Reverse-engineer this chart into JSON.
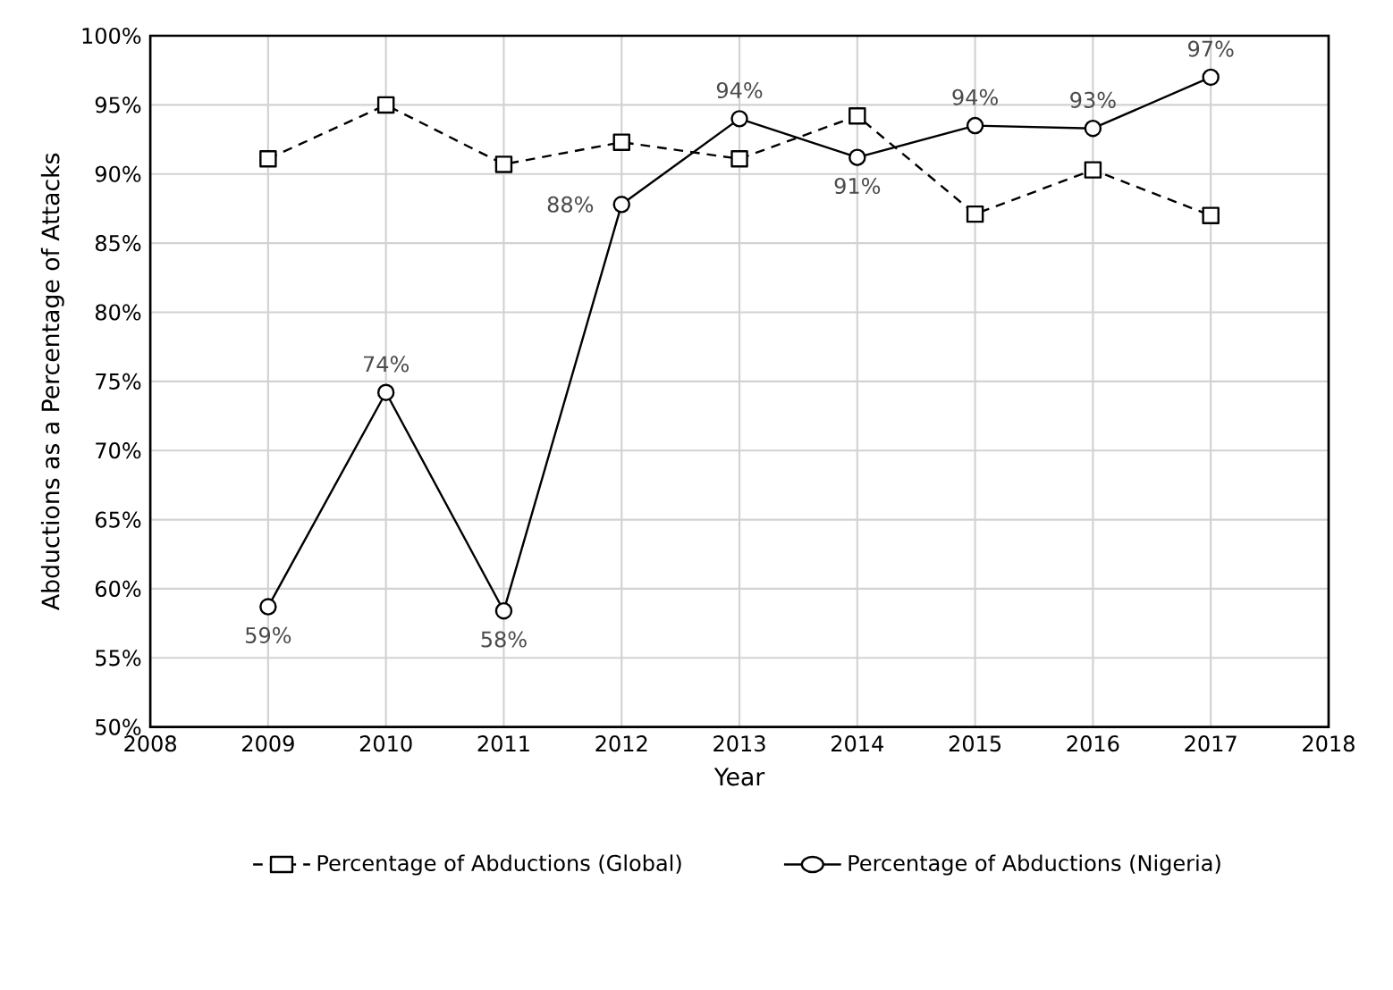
{
  "chart_data": {
    "type": "line",
    "xlabel": "Year",
    "ylabel": "Abductions as a Percentage of Attacks",
    "x": [
      2009,
      2010,
      2011,
      2012,
      2013,
      2014,
      2015,
      2016,
      2017
    ],
    "series": [
      {
        "name": "Percentage of Abductions (Global)",
        "color": "#000000",
        "line_style": "dashed",
        "marker": "square",
        "values": [
          91.1,
          95.0,
          90.7,
          92.3,
          91.1,
          94.2,
          87.1,
          90.3,
          87.0
        ]
      },
      {
        "name": "Percentage of Abductions (Nigeria)",
        "color": "#000000",
        "line_style": "solid",
        "marker": "circle",
        "values": [
          58.7,
          74.2,
          58.4,
          87.8,
          94.0,
          91.2,
          93.5,
          93.3,
          97.0
        ],
        "value_labels": [
          "59%",
          "74%",
          "58%",
          "88%",
          "94%",
          "91%",
          "94%",
          "93%",
          "97%"
        ]
      }
    ],
    "xlim": [
      2008,
      2018
    ],
    "xticks": [
      2008,
      2009,
      2010,
      2011,
      2012,
      2013,
      2014,
      2015,
      2016,
      2017,
      2018
    ],
    "ylim": [
      50,
      100
    ],
    "yticks": [
      {
        "value": 50,
        "label": "50%"
      },
      {
        "value": 55,
        "label": "55%"
      },
      {
        "value": 60,
        "label": "60%"
      },
      {
        "value": 65,
        "label": "65%"
      },
      {
        "value": 70,
        "label": "70%"
      },
      {
        "value": 75,
        "label": "75%"
      },
      {
        "value": 80,
        "label": "80%"
      },
      {
        "value": 85,
        "label": "85%"
      },
      {
        "value": 90,
        "label": "90%"
      },
      {
        "value": 95,
        "label": "95%"
      },
      {
        "value": 100,
        "label": "100%"
      }
    ],
    "grid": true,
    "legend": "bottom"
  }
}
